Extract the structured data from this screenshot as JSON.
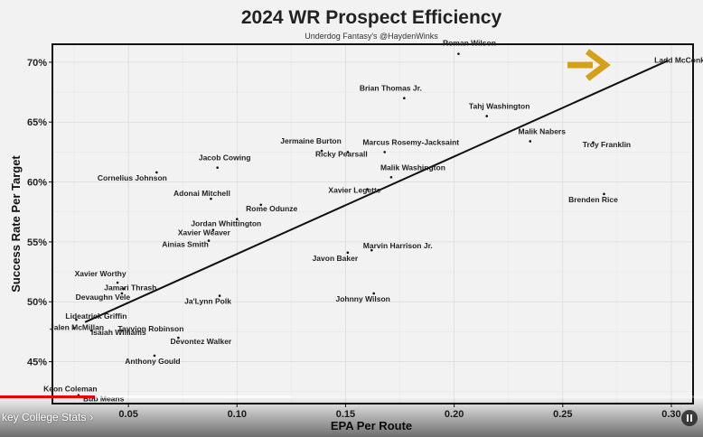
{
  "chart_data": {
    "type": "scatter",
    "title": "2024 WR Prospect Efficiency",
    "subtitle": "Underdog Fantasy's @HaydenWinks",
    "xlabel": "EPA Per Route",
    "ylabel": "Success Rate Per Target",
    "xlim": [
      0.015,
      0.31
    ],
    "ylim": [
      41.5,
      71.5
    ],
    "x_ticks": [
      0.05,
      0.1,
      0.15,
      0.2,
      0.25,
      0.3
    ],
    "x_tick_labels": [
      "0.05",
      "0.10",
      "0.15",
      "0.20",
      "0.25",
      "0.30"
    ],
    "y_ticks": [
      45,
      50,
      55,
      60,
      65,
      70
    ],
    "y_tick_labels": [
      "45%",
      "50%",
      "55%",
      "60%",
      "65%",
      "70%"
    ],
    "grid": true,
    "trendline": {
      "x": [
        0.03,
        0.298
      ],
      "y": [
        48.3,
        70.1
      ]
    },
    "annotation_arrow": {
      "color": "#d4a017",
      "points_to": "Ladd McConkey"
    },
    "points": [
      {
        "name": "Roman Wilson",
        "x": 0.202,
        "y": 70.7
      },
      {
        "name": "Ladd McConkey",
        "x": 0.298,
        "y": 70.1
      },
      {
        "name": "Brian Thomas Jr.",
        "x": 0.177,
        "y": 67.0
      },
      {
        "name": "Tahj Washington",
        "x": 0.215,
        "y": 65.5
      },
      {
        "name": "Malik Nabers",
        "x": 0.235,
        "y": 63.4
      },
      {
        "name": "Troy Franklin",
        "x": 0.264,
        "y": 63.3
      },
      {
        "name": "Jermaine Burton",
        "x": 0.139,
        "y": 62.6
      },
      {
        "name": "Marcus Rosemy-Jacksaint",
        "x": 0.168,
        "y": 62.5
      },
      {
        "name": "Ricky Pearsall",
        "x": 0.151,
        "y": 62.5
      },
      {
        "name": "Jacob Cowing",
        "x": 0.091,
        "y": 61.2
      },
      {
        "name": "Malik Washington",
        "x": 0.171,
        "y": 60.4
      },
      {
        "name": "Cornelius Johnson",
        "x": 0.063,
        "y": 60.8
      },
      {
        "name": "Adonai Mitchell",
        "x": 0.088,
        "y": 58.6
      },
      {
        "name": "Xavier Legette",
        "x": 0.16,
        "y": 59.4
      },
      {
        "name": "Brenden Rice",
        "x": 0.269,
        "y": 59.0
      },
      {
        "name": "Rome Odunze",
        "x": 0.111,
        "y": 58.1
      },
      {
        "name": "Jordan Whittington",
        "x": 0.1,
        "y": 56.9
      },
      {
        "name": "Xavier Weaver",
        "x": 0.089,
        "y": 56.0
      },
      {
        "name": "Ainias Smith",
        "x": 0.087,
        "y": 55.1
      },
      {
        "name": "Marvin Harrison Jr.",
        "x": 0.162,
        "y": 54.3
      },
      {
        "name": "Javon Baker",
        "x": 0.151,
        "y": 54.1
      },
      {
        "name": "Xavier Worthy",
        "x": 0.045,
        "y": 51.6
      },
      {
        "name": "Jamari Thrash",
        "x": 0.048,
        "y": 51.1
      },
      {
        "name": "Devaughn Vele",
        "x": 0.047,
        "y": 50.7
      },
      {
        "name": "Ja'Lynn Polk",
        "x": 0.092,
        "y": 50.5
      },
      {
        "name": "Johnny Wilson",
        "x": 0.163,
        "y": 50.7
      },
      {
        "name": "Lideatrick Griffin",
        "x": 0.026,
        "y": 48.5
      },
      {
        "name": "Tayvion Robinson",
        "x": 0.047,
        "y": 47.6
      },
      {
        "name": "Jalen McMillan",
        "x": 0.025,
        "y": 47.8
      },
      {
        "name": "Isaiah Williams",
        "x": 0.033,
        "y": 47.6
      },
      {
        "name": "Devontez Walker",
        "x": 0.073,
        "y": 47.0
      },
      {
        "name": "Anthony Gould",
        "x": 0.062,
        "y": 45.5
      },
      {
        "name": "Keon Coleman",
        "x": 0.027,
        "y": 42.2
      },
      {
        "name": "Bub Means",
        "x": 0.034,
        "y": 42.0
      }
    ]
  },
  "player": {
    "chapter_title": "key College Stats",
    "chapter_chevron": "›",
    "played_fraction": 0.135,
    "buffered_fraction": 0.415,
    "pause_icon": "pause-icon"
  }
}
